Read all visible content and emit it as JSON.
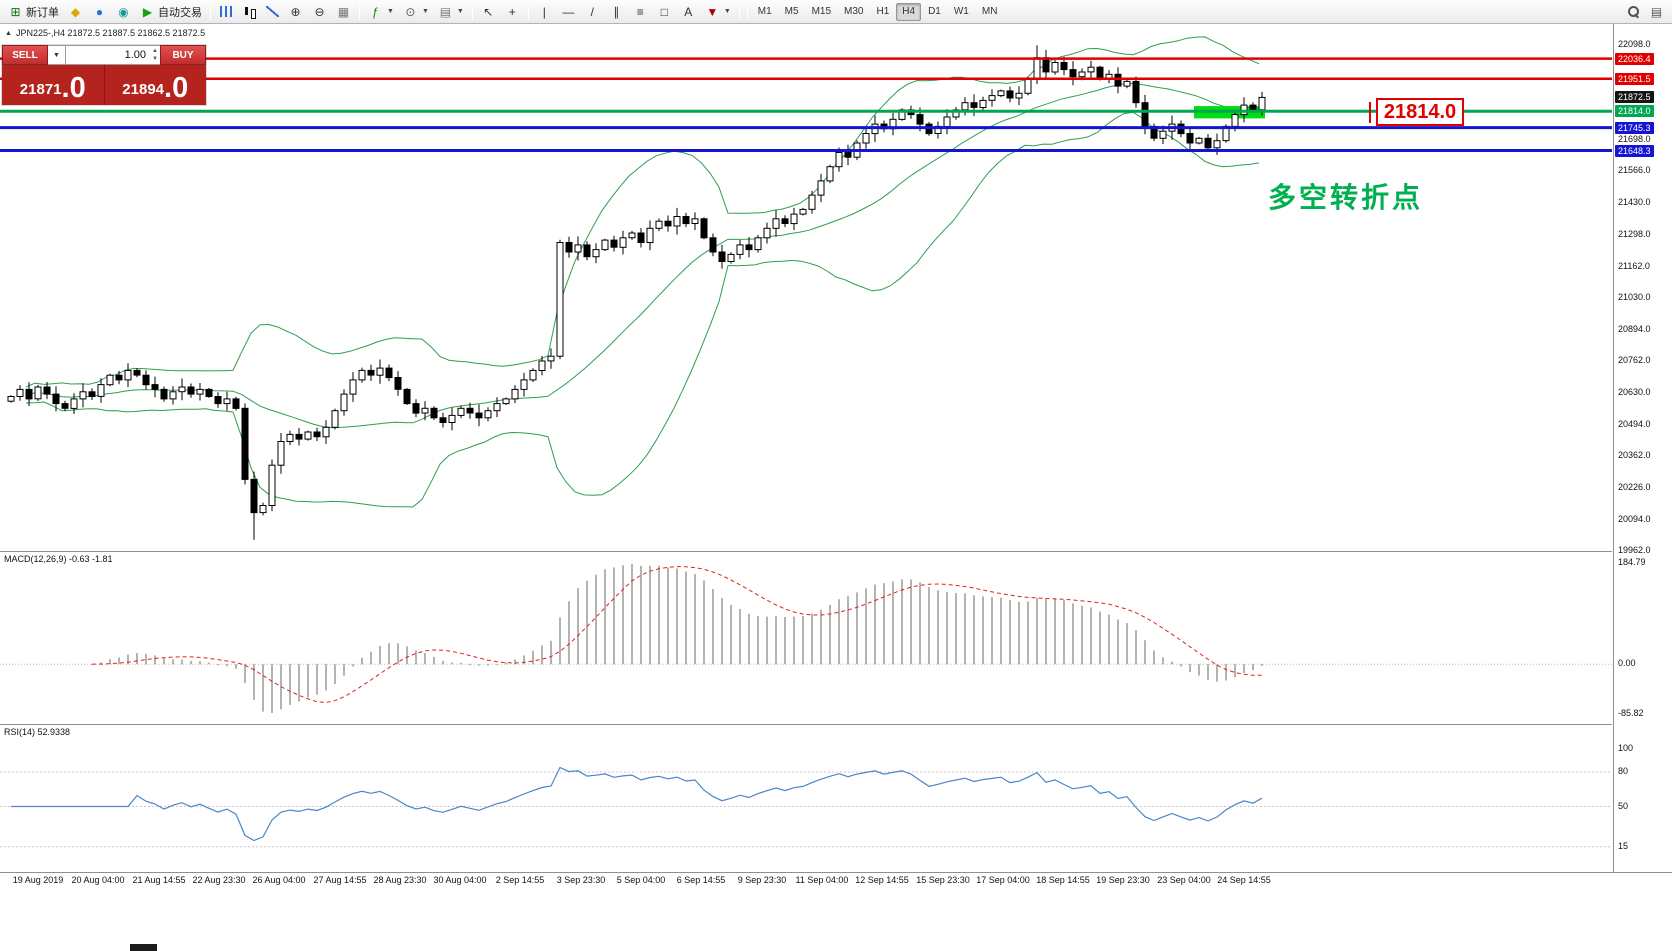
{
  "toolbar": {
    "items": [
      {
        "name": "new-order-button",
        "icon": "new-order-icon",
        "label": "新订单"
      },
      {
        "name": "funds-button",
        "icon": "funds-icon"
      },
      {
        "name": "community-button",
        "icon": "community-icon"
      },
      {
        "name": "market-button",
        "icon": "market-icon"
      },
      {
        "name": "auto-trading-button",
        "icon": "autotrade-icon",
        "label": "自动交易"
      },
      {
        "sep": true
      },
      {
        "name": "bar-chart-button",
        "icon": "bars-icon"
      },
      {
        "name": "candlestick-chart-button",
        "icon": "candles-icon"
      },
      {
        "name": "line-chart-button",
        "icon": "line-icon"
      },
      {
        "name": "zoom-in-button",
        "icon": "zoom-in-icon"
      },
      {
        "name": "zoom-out-button",
        "icon": "zoom-out-icon"
      },
      {
        "name": "tile-windows-button",
        "icon": "tile-icon"
      },
      {
        "sep": true
      },
      {
        "name": "indicators-button",
        "icon": "indicators-icon",
        "dropdown": true
      },
      {
        "name": "periods-button",
        "icon": "clock-icon",
        "dropdown": true
      },
      {
        "name": "templates-button",
        "icon": "template-icon",
        "dropdown": true
      },
      {
        "sep": true
      },
      {
        "name": "cursor-button",
        "icon": "cursor-icon"
      },
      {
        "name": "crosshair-button",
        "icon": "crosshair-icon"
      },
      {
        "sep": true
      },
      {
        "name": "vertical-line-button",
        "icon": "vline-icon"
      },
      {
        "name": "horizontal-line-button",
        "icon": "hline-icon"
      },
      {
        "name": "trendline-button",
        "icon": "trendline-icon"
      },
      {
        "name": "channel-button",
        "icon": "channel-icon"
      },
      {
        "name": "fibonacci-button",
        "icon": "fibonacci-icon"
      },
      {
        "name": "shapes-button",
        "icon": "shapes-icon"
      },
      {
        "name": "text-button",
        "icon": "text-icon"
      },
      {
        "name": "arrow-tools-button",
        "icon": "arrows-icon",
        "dropdown": true
      },
      {
        "sep": true
      }
    ],
    "timeframes": [
      "M1",
      "M5",
      "M15",
      "M30",
      "H1",
      "H4",
      "D1",
      "W1",
      "MN"
    ],
    "active_timeframe": "H4",
    "right_icons": [
      {
        "name": "search-button",
        "icon": "search-icon"
      },
      {
        "name": "chart-list-button",
        "icon": "panel-icon"
      }
    ]
  },
  "chart": {
    "symbol_info": "JPN225-,H4 21872.5 21887.5 21862.5 21872.5",
    "levels": [
      {
        "price": 22036.4,
        "color": "#e10000",
        "width": 2.5
      },
      {
        "price": 21951.5,
        "color": "#e10000",
        "width": 2.5
      },
      {
        "price": 21814.0,
        "color": "#00a651",
        "width": 3
      },
      {
        "price": 21745.3,
        "color": "#1414d2",
        "width": 3
      },
      {
        "price": 21648.3,
        "color": "#1414d2",
        "width": 3
      }
    ],
    "axis_labels": [
      "22098.0",
      "21698.0",
      "21566.0",
      "21430.0",
      "21298.0",
      "21162.0",
      "21030.0",
      "20894.0",
      "20762.0",
      "20630.0",
      "20494.0",
      "20362.0",
      "20226.0",
      "20094.0",
      "19962.0"
    ],
    "axis_chips": [
      {
        "text": "22036.4",
        "price": 22036.4,
        "bg": "#e10000"
      },
      {
        "text": "21951.5",
        "price": 21951.5,
        "bg": "#e10000"
      },
      {
        "text": "21872.5",
        "price": 21872.5,
        "bg": "#141414"
      },
      {
        "text": "21814.0",
        "price": 21814.0,
        "bg": "#00a651"
      },
      {
        "text": "21745.3",
        "price": 21745.3,
        "bg": "#1414d2"
      },
      {
        "text": "21648.3",
        "price": 21648.3,
        "bg": "#1414d2"
      }
    ]
  },
  "trade_panel": {
    "sell_label": "SELL",
    "buy_label": "BUY",
    "volume": "1.00",
    "sell_price_main": "21871",
    "sell_price_frac": ".0",
    "buy_price_main": "21894",
    "buy_price_frac": ".0"
  },
  "annotations": {
    "price_box": "21814.0",
    "turning_point_text": "多空转折点",
    "highlight": {
      "start_index": 132,
      "end_index": 139,
      "price_top": 21836,
      "price_bottom": 21784,
      "color": "#00dd13"
    }
  },
  "macd": {
    "label": "MACD(12,26,9) -0.63 -1.81",
    "scale_labels": [
      "184.79",
      "0.00",
      "-85.82"
    ]
  },
  "rsi": {
    "label": "RSI(14) 52.9338",
    "scale_labels": [
      "100",
      "80",
      "50",
      "15"
    ],
    "levels": [
      80,
      50,
      15
    ]
  },
  "time_axis": {
    "labels": [
      "19 Aug 2019",
      "20 Aug 04:00",
      "21 Aug 14:55",
      "22 Aug 23:30",
      "26 Aug 04:00",
      "27 Aug 14:55",
      "28 Aug 23:30",
      "30 Aug 04:00",
      "2 Sep 14:55",
      "3 Sep 23:30",
      "5 Sep 04:00",
      "6 Sep 14:55",
      "9 Sep 23:30",
      "11 Sep 04:00",
      "12 Sep 14:55",
      "15 Sep 23:30",
      "17 Sep 04:00",
      "18 Sep 14:55",
      "19 Sep 23:30",
      "23 Sep 04:00",
      "24 Sep 14:55"
    ]
  },
  "chart_data": {
    "type": "candlestick",
    "symbol": "JPN225-",
    "timeframe": "H4",
    "quote": {
      "open": 21872.5,
      "high": 21887.5,
      "low": 21862.5,
      "close": 21872.5
    },
    "y_range": [
      19962.0,
      22098.0
    ],
    "first_open": 20590,
    "closes": [
      20610,
      20640,
      20600,
      20650,
      20620,
      20580,
      20560,
      20600,
      20630,
      20610,
      20660,
      20700,
      20680,
      20720,
      20700,
      20660,
      20640,
      20600,
      20630,
      20650,
      20620,
      20640,
      20610,
      20580,
      20600,
      20560,
      20260,
      20120,
      20150,
      20320,
      20420,
      20450,
      20430,
      20460,
      20440,
      20480,
      20550,
      20620,
      20680,
      20720,
      20700,
      20730,
      20690,
      20640,
      20580,
      20540,
      20560,
      20520,
      20500,
      20530,
      20560,
      20540,
      20520,
      20550,
      20580,
      20600,
      20640,
      20680,
      20720,
      20760,
      20780,
      21260,
      21220,
      21250,
      21200,
      21230,
      21270,
      21240,
      21280,
      21300,
      21260,
      21320,
      21350,
      21330,
      21370,
      21340,
      21360,
      21280,
      21220,
      21180,
      21210,
      21250,
      21230,
      21280,
      21320,
      21360,
      21340,
      21380,
      21400,
      21460,
      21520,
      21580,
      21640,
      21620,
      21680,
      21720,
      21760,
      21740,
      21780,
      21820,
      21800,
      21760,
      21720,
      21750,
      21790,
      21820,
      21850,
      21830,
      21860,
      21880,
      21900,
      21870,
      21890,
      21950,
      22040,
      21980,
      22020,
      21990,
      21960,
      21980,
      22000,
      21950,
      21970,
      21920,
      21940,
      21850,
      21750,
      21700,
      21730,
      21760,
      21720,
      21680,
      21700,
      21660,
      21690,
      21750,
      21800,
      21840,
      21820,
      21872.5
    ],
    "spike_high": {
      "index": 114,
      "price": 22092
    },
    "spike_low": {
      "index": 27,
      "price": 20005
    },
    "bollinger_period": 20,
    "macd_params": [
      12,
      26,
      9
    ],
    "rsi_period": 14
  }
}
